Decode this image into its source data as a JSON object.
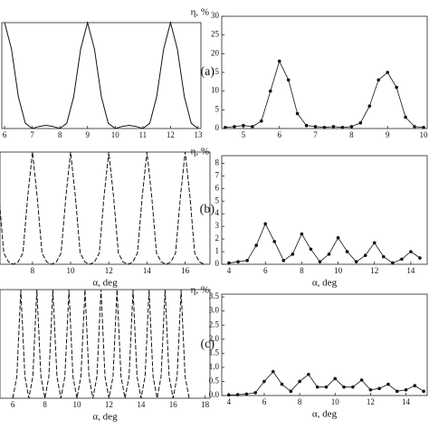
{
  "chart_data": [
    {
      "type": "line",
      "xlim": [
        5.9,
        13.1
      ],
      "ylim": [
        0,
        1
      ],
      "xticks": [
        6,
        7,
        8,
        9,
        10,
        11,
        12,
        13
      ],
      "line_style": "solid",
      "color": "#111",
      "x": [
        6,
        6.25,
        6.5,
        6.75,
        7,
        7.25,
        7.5,
        7.75,
        8,
        8.25,
        8.5,
        8.75,
        9,
        9.25,
        9.5,
        9.75,
        10,
        10.25,
        10.5,
        10.75,
        11,
        11.25,
        11.5,
        11.75,
        12,
        12.25,
        12.5,
        12.75,
        13
      ],
      "values": [
        1,
        0.75,
        0.3,
        0.05,
        0,
        0.02,
        0.03,
        0.02,
        0,
        0.05,
        0.3,
        0.75,
        1,
        0.75,
        0.3,
        0.05,
        0,
        0.02,
        0.03,
        0.02,
        0,
        0.05,
        0.3,
        0.75,
        1,
        0.75,
        0.3,
        0.05,
        0
      ]
    },
    {
      "type": "line",
      "xlim": [
        4.4,
        10.1
      ],
      "ylim": [
        0,
        30
      ],
      "xticks": [
        5,
        6,
        7,
        8,
        9,
        10
      ],
      "yticks": [
        0,
        5,
        10,
        15,
        20,
        25,
        30
      ],
      "y_label": "η, %",
      "annotation": "(a)",
      "markers": true,
      "color": "#111",
      "x": [
        4.5,
        4.75,
        5,
        5.25,
        5.5,
        5.75,
        6,
        6.25,
        6.5,
        6.75,
        7,
        7.25,
        7.5,
        7.75,
        8,
        8.25,
        8.5,
        8.75,
        9,
        9.25,
        9.5,
        9.75,
        10
      ],
      "values": [
        0.3,
        0.5,
        0.8,
        0.5,
        2,
        10,
        18,
        13,
        4,
        0.8,
        0.5,
        0.3,
        0.5,
        0.3,
        0.5,
        1.5,
        6,
        13,
        15,
        11,
        3,
        0.5,
        0.3
      ]
    },
    {
      "type": "line",
      "xlim": [
        6.3,
        17.3
      ],
      "ylim": [
        0,
        1
      ],
      "xticks": [
        8,
        10,
        12,
        14,
        16
      ],
      "x_label": "α, deg",
      "line_style": "dashed",
      "color": "#111",
      "x": [
        6.25,
        6.5,
        6.75,
        7,
        7.25,
        7.5,
        7.75,
        8,
        8.25,
        8.5,
        8.75,
        9,
        9.25,
        9.5,
        9.75,
        10,
        10.25,
        10.5,
        10.75,
        11,
        11.25,
        11.5,
        11.75,
        12,
        12.25,
        12.5,
        12.75,
        13,
        13.25,
        13.5,
        13.75,
        14,
        14.25,
        14.5,
        14.75,
        15,
        15.25,
        15.5,
        15.75,
        16,
        16.25,
        16.5,
        16.75,
        17
      ],
      "values": [
        0.6,
        0.1,
        0.02,
        0,
        0.02,
        0.1,
        0.6,
        1,
        0.6,
        0.1,
        0.02,
        0,
        0.02,
        0.1,
        0.6,
        1,
        0.6,
        0.1,
        0.02,
        0,
        0.02,
        0.1,
        0.6,
        1,
        0.6,
        0.1,
        0.02,
        0,
        0.02,
        0.1,
        0.6,
        1,
        0.6,
        0.1,
        0.02,
        0,
        0.02,
        0.1,
        0.6,
        1,
        0.6,
        0.1,
        0.02,
        0
      ]
    },
    {
      "type": "line",
      "xlim": [
        3.6,
        14.9
      ],
      "ylim": [
        0,
        8.6
      ],
      "xticks": [
        4,
        6,
        8,
        10,
        12,
        14
      ],
      "yticks": [
        0,
        1,
        2,
        3,
        4,
        5,
        6,
        7,
        8
      ],
      "y_label": "η, %",
      "x_label": "α, deg",
      "annotation": "(b)",
      "markers": true,
      "color": "#111",
      "x": [
        4,
        4.5,
        5,
        5.5,
        6,
        6.5,
        7,
        7.5,
        8,
        8.5,
        9,
        9.5,
        10,
        10.5,
        11,
        11.5,
        12,
        12.5,
        13,
        13.5,
        14,
        14.5
      ],
      "values": [
        0.1,
        0.2,
        0.3,
        1.5,
        3.2,
        1.8,
        0.3,
        0.8,
        2.4,
        1.2,
        0.2,
        0.8,
        2.1,
        1,
        0.2,
        0.7,
        1.7,
        0.6,
        0.1,
        0.4,
        1,
        0.5
      ]
    },
    {
      "type": "line",
      "xlim": [
        5.2,
        18.3
      ],
      "ylim": [
        0,
        1
      ],
      "xticks": [
        6,
        8,
        10,
        12,
        14,
        16,
        18
      ],
      "x_label": "α, deg",
      "line_style": "dashed",
      "color": "#111",
      "x": [
        6,
        6.25,
        6.5,
        6.75,
        7,
        7.25,
        7.5,
        7.75,
        8,
        8.25,
        8.5,
        8.75,
        9,
        9.25,
        9.5,
        9.75,
        10,
        10.25,
        10.5,
        10.75,
        11,
        11.25,
        11.5,
        11.75,
        12,
        12.25,
        12.5,
        12.75,
        13,
        13.25,
        13.5,
        13.75,
        14,
        14.25,
        14.5,
        14.75,
        15,
        15.25,
        15.5,
        15.75,
        16,
        16.25,
        16.5,
        16.75,
        17
      ],
      "values": [
        0,
        0.2,
        1,
        0.2,
        0,
        0.2,
        1,
        0.2,
        0,
        0.2,
        1,
        0.2,
        0,
        0.2,
        1,
        0.2,
        0,
        0.2,
        1,
        0.2,
        0,
        0.2,
        1,
        0.2,
        0,
        0.2,
        1,
        0.2,
        0,
        0.2,
        1,
        0.2,
        0,
        0.2,
        1,
        0.2,
        0,
        0.2,
        1,
        0.2,
        0,
        0.2,
        1,
        0.2,
        0
      ]
    },
    {
      "type": "line",
      "xlim": [
        3.6,
        15.2
      ],
      "ylim": [
        0,
        3.6
      ],
      "xticks": [
        4,
        6,
        8,
        10,
        12,
        14
      ],
      "yticks": [
        {
          "value": 0,
          "label": "0.0"
        },
        0.5,
        {
          "value": 1,
          "label": "1.0"
        },
        1.5,
        {
          "value": 2,
          "label": "2.0"
        },
        2.5,
        {
          "value": 3,
          "label": "3.0"
        },
        3.5
      ],
      "y_label": "η, %",
      "x_label": "α, deg",
      "annotation": "(c)",
      "markers": true,
      "color": "#111",
      "x": [
        4,
        4.5,
        5,
        5.5,
        6,
        6.5,
        7,
        7.5,
        8,
        8.5,
        9,
        9.5,
        10,
        10.5,
        11,
        11.5,
        12,
        12.5,
        13,
        13.5,
        14,
        14.5,
        15
      ],
      "values": [
        0.02,
        0.03,
        0.05,
        0.1,
        0.5,
        0.85,
        0.4,
        0.15,
        0.5,
        0.75,
        0.3,
        0.3,
        0.6,
        0.3,
        0.3,
        0.55,
        0.2,
        0.25,
        0.4,
        0.15,
        0.2,
        0.35,
        0.15
      ]
    }
  ]
}
